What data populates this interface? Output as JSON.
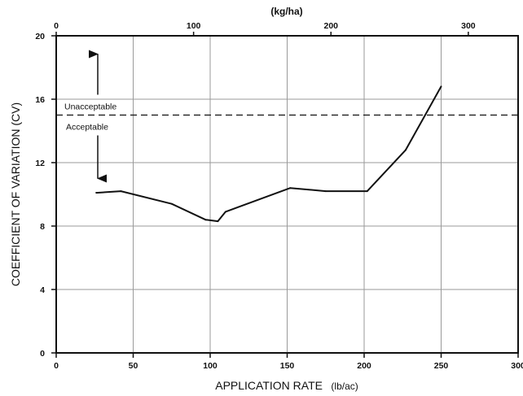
{
  "chart_data": {
    "type": "line",
    "x_axis": {
      "label_main": "APPLICATION RATE",
      "label_unit": "(lb/ac)",
      "min": 0,
      "max": 300,
      "ticks": [
        0,
        50,
        100,
        150,
        200,
        250,
        300
      ]
    },
    "x2_axis": {
      "label": "(kg/ha)",
      "lb_per_kg": 0.8922,
      "ticks": [
        0,
        100,
        200,
        300
      ]
    },
    "y_axis": {
      "label": "COEFFICIENT OF VARIATION (CV)",
      "min": 0,
      "max": 20,
      "ticks": [
        0,
        4,
        8,
        12,
        16,
        20
      ]
    },
    "grid": true,
    "series": [
      {
        "x": [
          26,
          42,
          75,
          97,
          105,
          110,
          152,
          175,
          202,
          227,
          250
        ],
        "y": [
          10.1,
          10.2,
          9.4,
          8.4,
          8.3,
          8.9,
          10.4,
          10.2,
          10.2,
          12.8,
          16.8
        ]
      }
    ],
    "threshold": {
      "y": 15,
      "above_label": "Unacceptable",
      "below_label": "Acceptable"
    }
  }
}
